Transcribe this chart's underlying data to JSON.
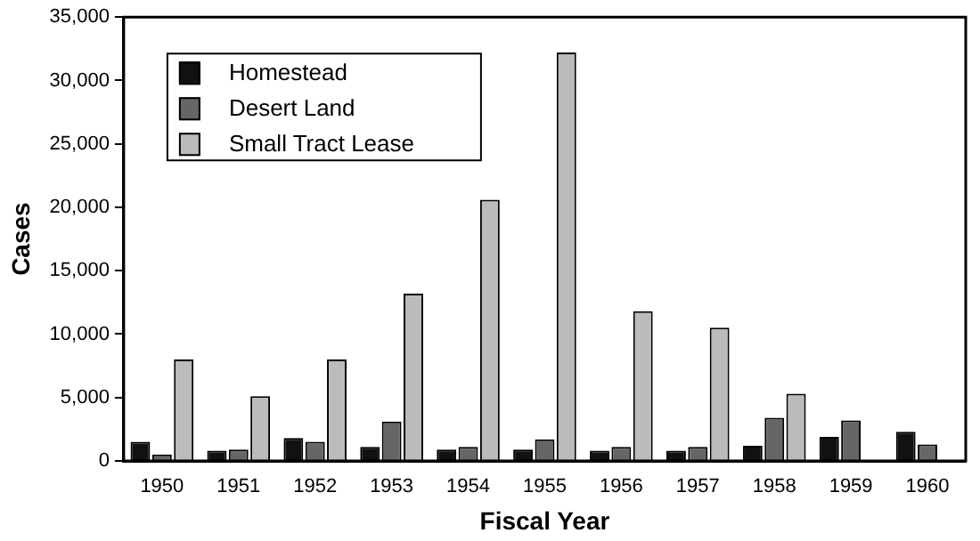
{
  "chart_data": {
    "type": "bar",
    "xlabel": "Fiscal Year",
    "ylabel": "Cases",
    "categories": [
      "1950",
      "1951",
      "1952",
      "1953",
      "1954",
      "1955",
      "1956",
      "1957",
      "1958",
      "1959",
      "1960"
    ],
    "series": [
      {
        "name": "Homestead",
        "color": "#111111",
        "values": [
          1500,
          800,
          1800,
          1100,
          900,
          900,
          800,
          800,
          1200,
          1900,
          2300
        ]
      },
      {
        "name": "Desert Land",
        "color": "#666666",
        "values": [
          500,
          900,
          1500,
          3100,
          1100,
          1700,
          1100,
          1100,
          3400,
          3200,
          1300
        ]
      },
      {
        "name": "Small Tract Lease",
        "color": "#bbbbbb",
        "values": [
          8000,
          5100,
          8000,
          13200,
          20600,
          32200,
          11800,
          10500,
          5300,
          0,
          null
        ]
      }
    ],
    "ylim": [
      0,
      35000
    ],
    "yticks": [
      {
        "value": 0,
        "label": "0"
      },
      {
        "value": 5000,
        "label": "5,000"
      },
      {
        "value": 10000,
        "label": "10,000"
      },
      {
        "value": 15000,
        "label": "15,000"
      },
      {
        "value": 20000,
        "label": "20,000"
      },
      {
        "value": 25000,
        "label": "25,000"
      },
      {
        "value": 30000,
        "label": "30,000"
      },
      {
        "value": 35000,
        "label": "35,000"
      }
    ],
    "grid": false,
    "legend": "top left"
  }
}
